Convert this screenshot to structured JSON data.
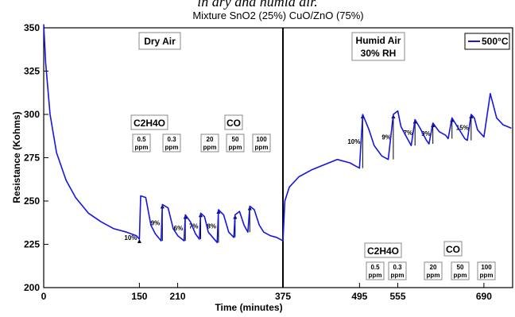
{
  "caption": "in dry and humid air.",
  "chart_data": {
    "type": "line",
    "title": "Mixture SnO2 (25%) CuO/ZnO (75%)",
    "xlabel": "Time (minutes)",
    "ylabel": "Resistance (Kohms)",
    "xlim": [
      0,
      735
    ],
    "ylim": [
      200,
      350
    ],
    "xticks": [
      0,
      150,
      210,
      375,
      495,
      555,
      690
    ],
    "yticks": [
      200,
      225,
      250,
      275,
      300,
      325,
      350
    ],
    "grid": false,
    "legend_position": "top-right",
    "series": [
      {
        "name": "500°C",
        "color": "#1515e6",
        "x": [
          0,
          3,
          10,
          20,
          35,
          50,
          70,
          90,
          110,
          130,
          145,
          150,
          152,
          160,
          168,
          175,
          184,
          186,
          195,
          203,
          210,
          220,
          222,
          230,
          238,
          244,
          246,
          252,
          258,
          265,
          272,
          274,
          282,
          290,
          298,
          300,
          307,
          314,
          320,
          323,
          330,
          338,
          345,
          355,
          365,
          375,
          378,
          385,
          400,
          420,
          440,
          460,
          480,
          490,
          495,
          500,
          510,
          518,
          522,
          530,
          540,
          548,
          555,
          560,
          570,
          576,
          582,
          590,
          600,
          604,
          610,
          620,
          630,
          634,
          640,
          650,
          660,
          664,
          670,
          675,
          680,
          690,
          700,
          710,
          720,
          733
        ],
        "y": [
          352,
          330,
          300,
          278,
          262,
          252,
          243,
          238,
          234,
          232,
          230,
          228,
          253,
          252,
          236,
          231,
          227,
          248,
          246,
          234,
          230,
          227,
          242,
          238,
          231,
          228,
          243,
          241,
          232,
          229,
          226,
          245,
          242,
          232,
          229,
          242,
          244,
          236,
          232,
          247,
          245,
          236,
          232,
          230,
          229,
          227,
          250,
          258,
          264,
          268,
          271,
          274,
          272,
          270,
          269,
          300,
          291,
          282,
          280,
          276,
          274,
          300,
          302,
          293,
          286,
          282,
          297,
          292,
          285,
          283,
          295,
          290,
          288,
          286,
          298,
          292,
          286,
          285,
          300,
          298,
          291,
          287,
          312,
          298,
          294,
          292
        ]
      }
    ],
    "regions": [
      {
        "label": "Dry Air"
      },
      {
        "label_line1": "Humid Air",
        "label_line2": "30% RH"
      }
    ],
    "divider_x": 375,
    "pulses": [
      {
        "x": 150,
        "label": "10%"
      },
      {
        "x": 186,
        "label": "9%"
      },
      {
        "x": 222,
        "label": "6%"
      },
      {
        "x": 246,
        "label": "7%"
      },
      {
        "x": 274,
        "label": "8%"
      },
      {
        "x": 300
      },
      {
        "x": 323
      },
      {
        "x": 500,
        "label": "10%"
      },
      {
        "x": 548,
        "label": "9%"
      },
      {
        "x": 582,
        "label": "7%"
      },
      {
        "x": 610,
        "label": "9%"
      },
      {
        "x": 640
      },
      {
        "x": 670,
        "label": "15%"
      }
    ],
    "gas_groups": [
      {
        "gas": "C2H4O",
        "region": "dry",
        "boxes": [
          {
            "l1": "0.5",
            "l2": "ppm"
          },
          {
            "l1": "0.3",
            "l2": "ppm"
          }
        ]
      },
      {
        "gas": "CO",
        "region": "dry",
        "boxes": [
          {
            "l1": "20",
            "l2": "ppm"
          },
          {
            "l1": "50",
            "l2": "ppm"
          },
          {
            "l1": "100",
            "l2": "ppm"
          }
        ]
      },
      {
        "gas": "C2H4O",
        "region": "humid",
        "boxes": [
          {
            "l1": "0.5",
            "l2": "ppm"
          },
          {
            "l1": "0.3",
            "l2": "ppm"
          }
        ]
      },
      {
        "gas": "CO",
        "region": "humid",
        "boxes": [
          {
            "l1": "20",
            "l2": "ppm"
          },
          {
            "l1": "50",
            "l2": "ppm"
          },
          {
            "l1": "100",
            "l2": "ppm"
          }
        ]
      }
    ]
  }
}
